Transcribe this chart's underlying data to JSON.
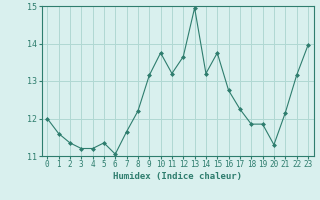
{
  "x": [
    0,
    1,
    2,
    3,
    4,
    5,
    6,
    7,
    8,
    9,
    10,
    11,
    12,
    13,
    14,
    15,
    16,
    17,
    18,
    19,
    20,
    21,
    22,
    23
  ],
  "y": [
    12.0,
    11.6,
    11.35,
    11.2,
    11.2,
    11.35,
    11.05,
    11.65,
    12.2,
    13.15,
    13.75,
    13.2,
    13.65,
    14.95,
    13.2,
    13.75,
    12.75,
    12.25,
    11.85,
    11.85,
    11.3,
    12.15,
    13.15,
    13.95
  ],
  "line_color": "#2e7d6e",
  "marker": "D",
  "marker_size": 2,
  "bg_color": "#d9f0ee",
  "grid_color": "#b0d8d3",
  "xlabel": "Humidex (Indice chaleur)",
  "ylim": [
    11.0,
    15.0
  ],
  "xlim": [
    -0.5,
    23.5
  ],
  "yticks": [
    11,
    12,
    13,
    14,
    15
  ],
  "xticks": [
    0,
    1,
    2,
    3,
    4,
    5,
    6,
    7,
    8,
    9,
    10,
    11,
    12,
    13,
    14,
    15,
    16,
    17,
    18,
    19,
    20,
    21,
    22,
    23
  ],
  "tick_color": "#2e7d6e",
  "label_color": "#2e7d6e",
  "tick_fontsize": 5.5,
  "xlabel_fontsize": 6.5
}
